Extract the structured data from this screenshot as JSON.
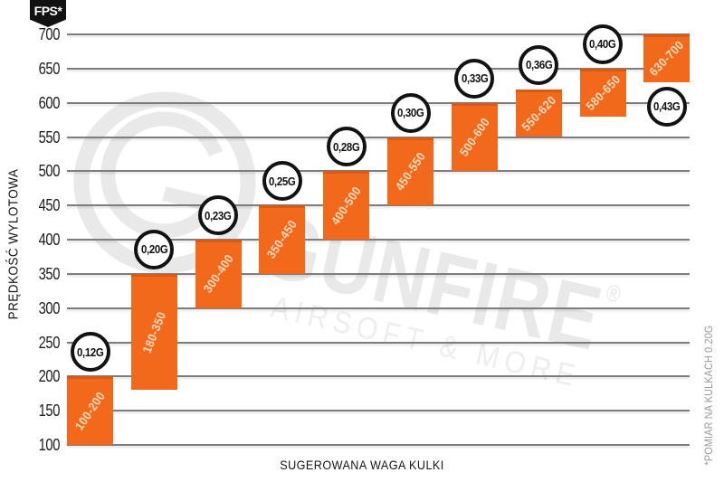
{
  "badge": {
    "label": "FPS*"
  },
  "watermark": {
    "brand": "GUNFIRE",
    "registered": "®",
    "tagline": "AIRSOFT & MORE"
  },
  "colors": {
    "bar_fill": "#f2691b",
    "bar_top_edge": "#d95a14",
    "grid_line": "#7d7d7d",
    "circle_border": "#121212",
    "circle_fill": "#ffffff",
    "badge_bg": "#111111",
    "badge_text": "#ffffff",
    "bar_label_text": "#f8ddc2",
    "footnote_text": "#9b9b9b",
    "watermark_gray": "#e9e9e9"
  },
  "chart_data": {
    "type": "bar",
    "title": "",
    "xlabel": "SUGEROWANA WAGA KULKI",
    "ylabel": "PRĘDKOŚĆ WYLOTOWA",
    "y_unit_badge": "FPS*",
    "ylim": [
      100,
      700
    ],
    "y_ticks": [
      700,
      650,
      600,
      550,
      500,
      450,
      400,
      350,
      300,
      250,
      200,
      150,
      100
    ],
    "grid": "horizontal",
    "legend": "none",
    "footnote": "*POMIAR NA KULKACH 0.20G",
    "bars": [
      {
        "weight": "0,12G",
        "range_label": "100-200",
        "fps_min": 100,
        "fps_max": 200,
        "weight_label_position": "above"
      },
      {
        "weight": "0,20G",
        "range_label": "180-350",
        "fps_min": 180,
        "fps_max": 350,
        "weight_label_position": "above"
      },
      {
        "weight": "0,23G",
        "range_label": "300-400",
        "fps_min": 300,
        "fps_max": 400,
        "weight_label_position": "above"
      },
      {
        "weight": "0,25G",
        "range_label": "350-450",
        "fps_min": 350,
        "fps_max": 450,
        "weight_label_position": "above"
      },
      {
        "weight": "0,28G",
        "range_label": "400-500",
        "fps_min": 400,
        "fps_max": 500,
        "weight_label_position": "above"
      },
      {
        "weight": "0,30G",
        "range_label": "450-550",
        "fps_min": 450,
        "fps_max": 550,
        "weight_label_position": "above"
      },
      {
        "weight": "0,33G",
        "range_label": "500-600",
        "fps_min": 500,
        "fps_max": 600,
        "weight_label_position": "above"
      },
      {
        "weight": "0,36G",
        "range_label": "550-620",
        "fps_min": 550,
        "fps_max": 620,
        "weight_label_position": "above"
      },
      {
        "weight": "0,40G",
        "range_label": "580-650",
        "fps_min": 580,
        "fps_max": 650,
        "weight_label_position": "above"
      },
      {
        "weight": "0,43G",
        "range_label": "630-700",
        "fps_min": 630,
        "fps_max": 700,
        "weight_label_position": "below"
      }
    ]
  }
}
